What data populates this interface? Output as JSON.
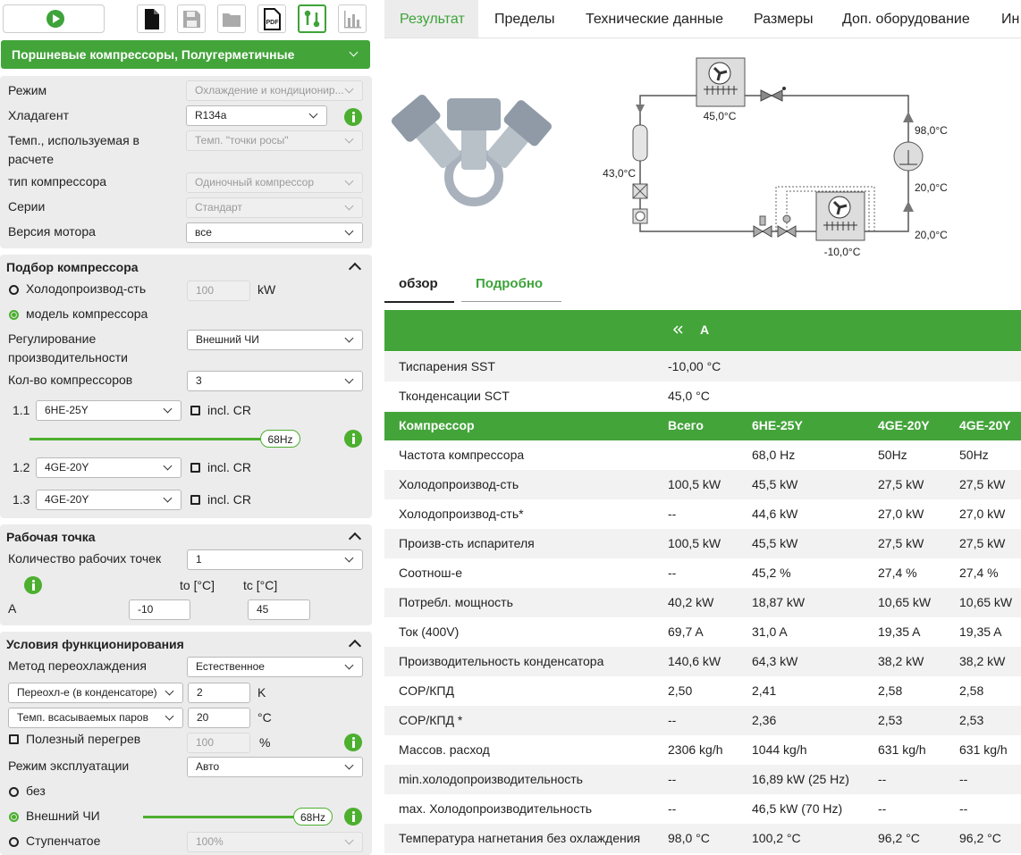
{
  "toolbar": {
    "pdf": "PDF"
  },
  "product_header": "Поршневые компрессоры, Полугерметичные",
  "general": [
    [
      "Режим",
      "Охлаждение и кондиционир..."
    ],
    [
      "Хладагент",
      "R134a"
    ],
    [
      "Темп., используемая в расчете",
      "Темп. \"точки росы\""
    ],
    [
      "тип компрессора",
      "Одиночный компрессор"
    ],
    [
      "Серии",
      "Стандарт"
    ],
    [
      "Версия мотора",
      "все"
    ]
  ],
  "selection": {
    "title": "Подбор компрессора",
    "capacity_label": "Холодопроизвод-сть",
    "capacity_value": 100,
    "capacity_unit": "kW",
    "model_label": "модель компрессора",
    "regulation_label": "Регулирование производительности",
    "regulation_value": "Внешний ЧИ",
    "count_label": "Кол-во компрессоров",
    "count_value": 3,
    "compressors": [
      {
        "index": "1.1",
        "model": "6HE-25Y",
        "cr": "incl. CR",
        "frequency": "68Hz"
      },
      {
        "index": "1.2",
        "model": "4GE-20Y",
        "cr": "incl. CR"
      },
      {
        "index": "1.3",
        "model": "4GE-20Y",
        "cr": "incl. CR"
      }
    ]
  },
  "operating_point": {
    "title": "Рабочая точка",
    "count_label": "Количество рабочих точек",
    "count_value": 1,
    "to_label": "to [°C]",
    "tc_label": "tc [°C]",
    "point_label": "A",
    "to_value": -10,
    "tc_value": 45
  },
  "conditions": {
    "title": "Условия функционирования",
    "subcool_method_label": "Метод переохлаждения",
    "subcool_method_value": "Естественное",
    "subcool_select": "Переохл-е (в конденсаторе)",
    "subcool_value": 2,
    "subcool_unit": "K",
    "suction_select": "Темп. всасываемых паров",
    "suction_value": 20,
    "suction_unit": "°C",
    "superheat_label": "Полезный перегрев",
    "superheat_value": 100,
    "superheat_unit": "%",
    "mode_label": "Режим эксплуатации",
    "mode_value": "Авто",
    "option_none": "без",
    "option_vfd": "Внешний ЧИ",
    "vfd_frequency": "68Hz",
    "option_steps": "Ступенчатое",
    "steps_value": "100%"
  },
  "tabs": [
    "Результат",
    "Пределы",
    "Технические данные",
    "Размеры",
    "Доп. оборудование",
    "Ин"
  ],
  "diagram": {
    "condenser_temp": "45,0°C",
    "discharge_temp": "98,0°C",
    "liquid_temp": "43,0°C",
    "compressor_suction_temp": "20,0°C",
    "suction_line_temp": "20,0°C",
    "evaporator_temp": "-10,0°C"
  },
  "subtabs": [
    "обзор",
    "Подробно"
  ],
  "results": {
    "point": "A",
    "conditions": [
      [
        "Тиспарения SST",
        "-10,00 °C"
      ],
      [
        "Тконденсации SCT",
        "45,0 °C"
      ]
    ],
    "header": [
      "Компрессор",
      "Всего",
      "6HE-25Y",
      "4GE-20Y",
      "4GE-20Y"
    ],
    "rows": [
      [
        "Частота компрессора",
        null,
        "68,0 Hz",
        "50Hz",
        "50Hz"
      ],
      [
        "Холодопроизвод-сть",
        "100,5 kW",
        "45,5 kW",
        "27,5 kW",
        "27,5 kW"
      ],
      [
        "Холодопроизвод-сть*",
        "--",
        "44,6 kW",
        "27,0 kW",
        "27,0 kW"
      ],
      [
        "Произв-сть испарителя",
        "100,5 kW",
        "45,5 kW",
        "27,5 kW",
        "27,5 kW"
      ],
      [
        "Соотнош-е",
        "--",
        "45,2 %",
        "27,4 %",
        "27,4 %"
      ],
      [
        "Потребл. мощность",
        "40,2 kW",
        "18,87 kW",
        "10,65 kW",
        "10,65 kW"
      ],
      [
        "Ток (400V)",
        "69,7 A",
        "31,0 A",
        "19,35 A",
        "19,35 A"
      ],
      [
        "Производительность конденсатора",
        "140,6 kW",
        "64,3 kW",
        "38,2 kW",
        "38,2 kW"
      ],
      [
        "COP/КПД",
        "2,50",
        "2,41",
        "2,58",
        "2,58"
      ],
      [
        "COP/КПД *",
        "--",
        "2,36",
        "2,53",
        "2,53"
      ],
      [
        "Массов. расход",
        "2306 kg/h",
        "1044 kg/h",
        "631 kg/h",
        "631 kg/h"
      ],
      [
        "min.холодопроизводительность",
        "--",
        "16,89 kW (25 Hz)",
        "--",
        "--"
      ],
      [
        "max. Холодопроизводительность",
        "--",
        "46,5 kW (70 Hz)",
        "--",
        "--"
      ],
      [
        "Температура нагнетания без охлаждения",
        "98,0 °C",
        "100,2 °C",
        "96,2 °C",
        "96,2 °C"
      ]
    ]
  }
}
